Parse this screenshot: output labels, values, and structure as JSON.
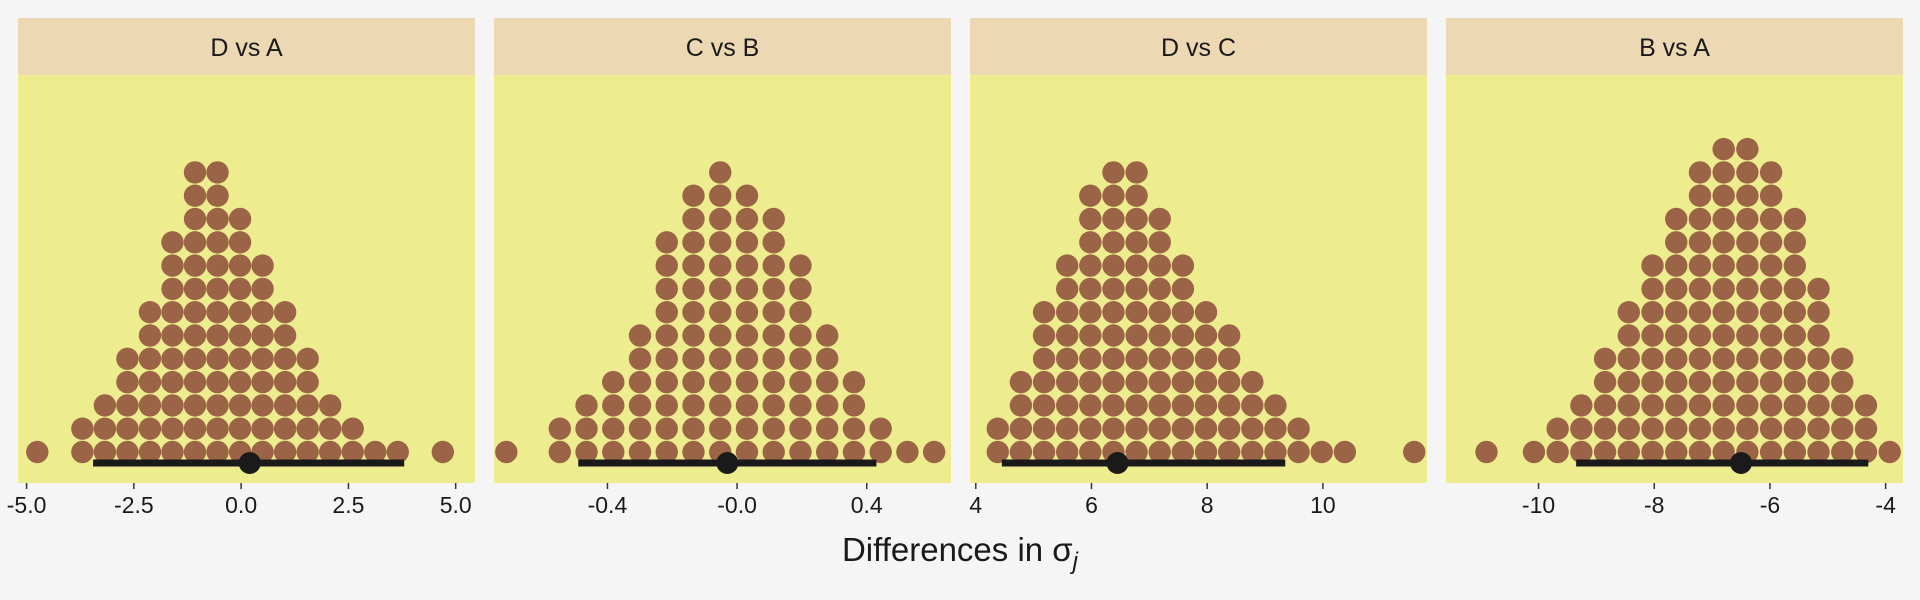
{
  "colors": {
    "background": "#f5f5f5",
    "strip": "#ecd9b4",
    "panel": "#eded8f",
    "dot": "#9c6446",
    "interval": "#1a1a1a"
  },
  "chart_data": {
    "type": "scatter",
    "style": "dotplot-with-point-interval",
    "xlabel": "Differences in σ",
    "xlabel_subscript": "j",
    "panels": [
      {
        "title": "D vs A",
        "xlim": [
          -5.2,
          5.45
        ],
        "ticks": [
          -5,
          -2.5,
          0,
          2.5,
          5
        ],
        "tick_labels": [
          "-5.0",
          "-2.5",
          "0.0",
          "2.5",
          "5.0"
        ],
        "bin_start": -4.75,
        "bin_width": 0.525,
        "counts": [
          1,
          0,
          2,
          3,
          5,
          7,
          10,
          13,
          13,
          11,
          9,
          7,
          5,
          3,
          2,
          1,
          1,
          0,
          1
        ],
        "interval": [
          -3.45,
          3.8
        ],
        "point": 0.2
      },
      {
        "title": "C vs B",
        "xlim": [
          -0.75,
          0.66
        ],
        "ticks": [
          -0.4,
          0,
          0.4
        ],
        "tick_labels": [
          "-0.4",
          "-0.0",
          "0.4"
        ],
        "bin_start": -0.712,
        "bin_width": 0.0825,
        "counts": [
          1,
          0,
          2,
          3,
          4,
          6,
          10,
          12,
          13,
          12,
          11,
          9,
          6,
          4,
          2,
          1,
          1
        ],
        "interval": [
          -0.49,
          0.43
        ],
        "point": -0.03
      },
      {
        "title": "D vs C",
        "xlim": [
          3.9,
          11.8
        ],
        "ticks": [
          4,
          6,
          8,
          10
        ],
        "tick_labels": [
          "4",
          "6",
          "8",
          "10"
        ],
        "bin_start": 4.38,
        "bin_width": 0.4,
        "counts": [
          2,
          4,
          7,
          9,
          12,
          13,
          13,
          11,
          9,
          7,
          6,
          4,
          3,
          2,
          1,
          1,
          0,
          0,
          1
        ],
        "interval": [
          4.45,
          9.35
        ],
        "point": 6.45
      },
      {
        "title": "B vs A",
        "xlim": [
          -11.6,
          -3.7
        ],
        "ticks": [
          -10,
          -8,
          -6,
          -4
        ],
        "tick_labels": [
          "-10",
          "-8",
          "-6",
          "-4"
        ],
        "bin_start": -10.9,
        "bin_width": 0.41,
        "counts": [
          1,
          0,
          1,
          2,
          3,
          5,
          7,
          9,
          11,
          13,
          14,
          14,
          13,
          11,
          8,
          5,
          3,
          1
        ],
        "interval": [
          -9.35,
          -4.3
        ],
        "point": -6.5
      }
    ]
  }
}
